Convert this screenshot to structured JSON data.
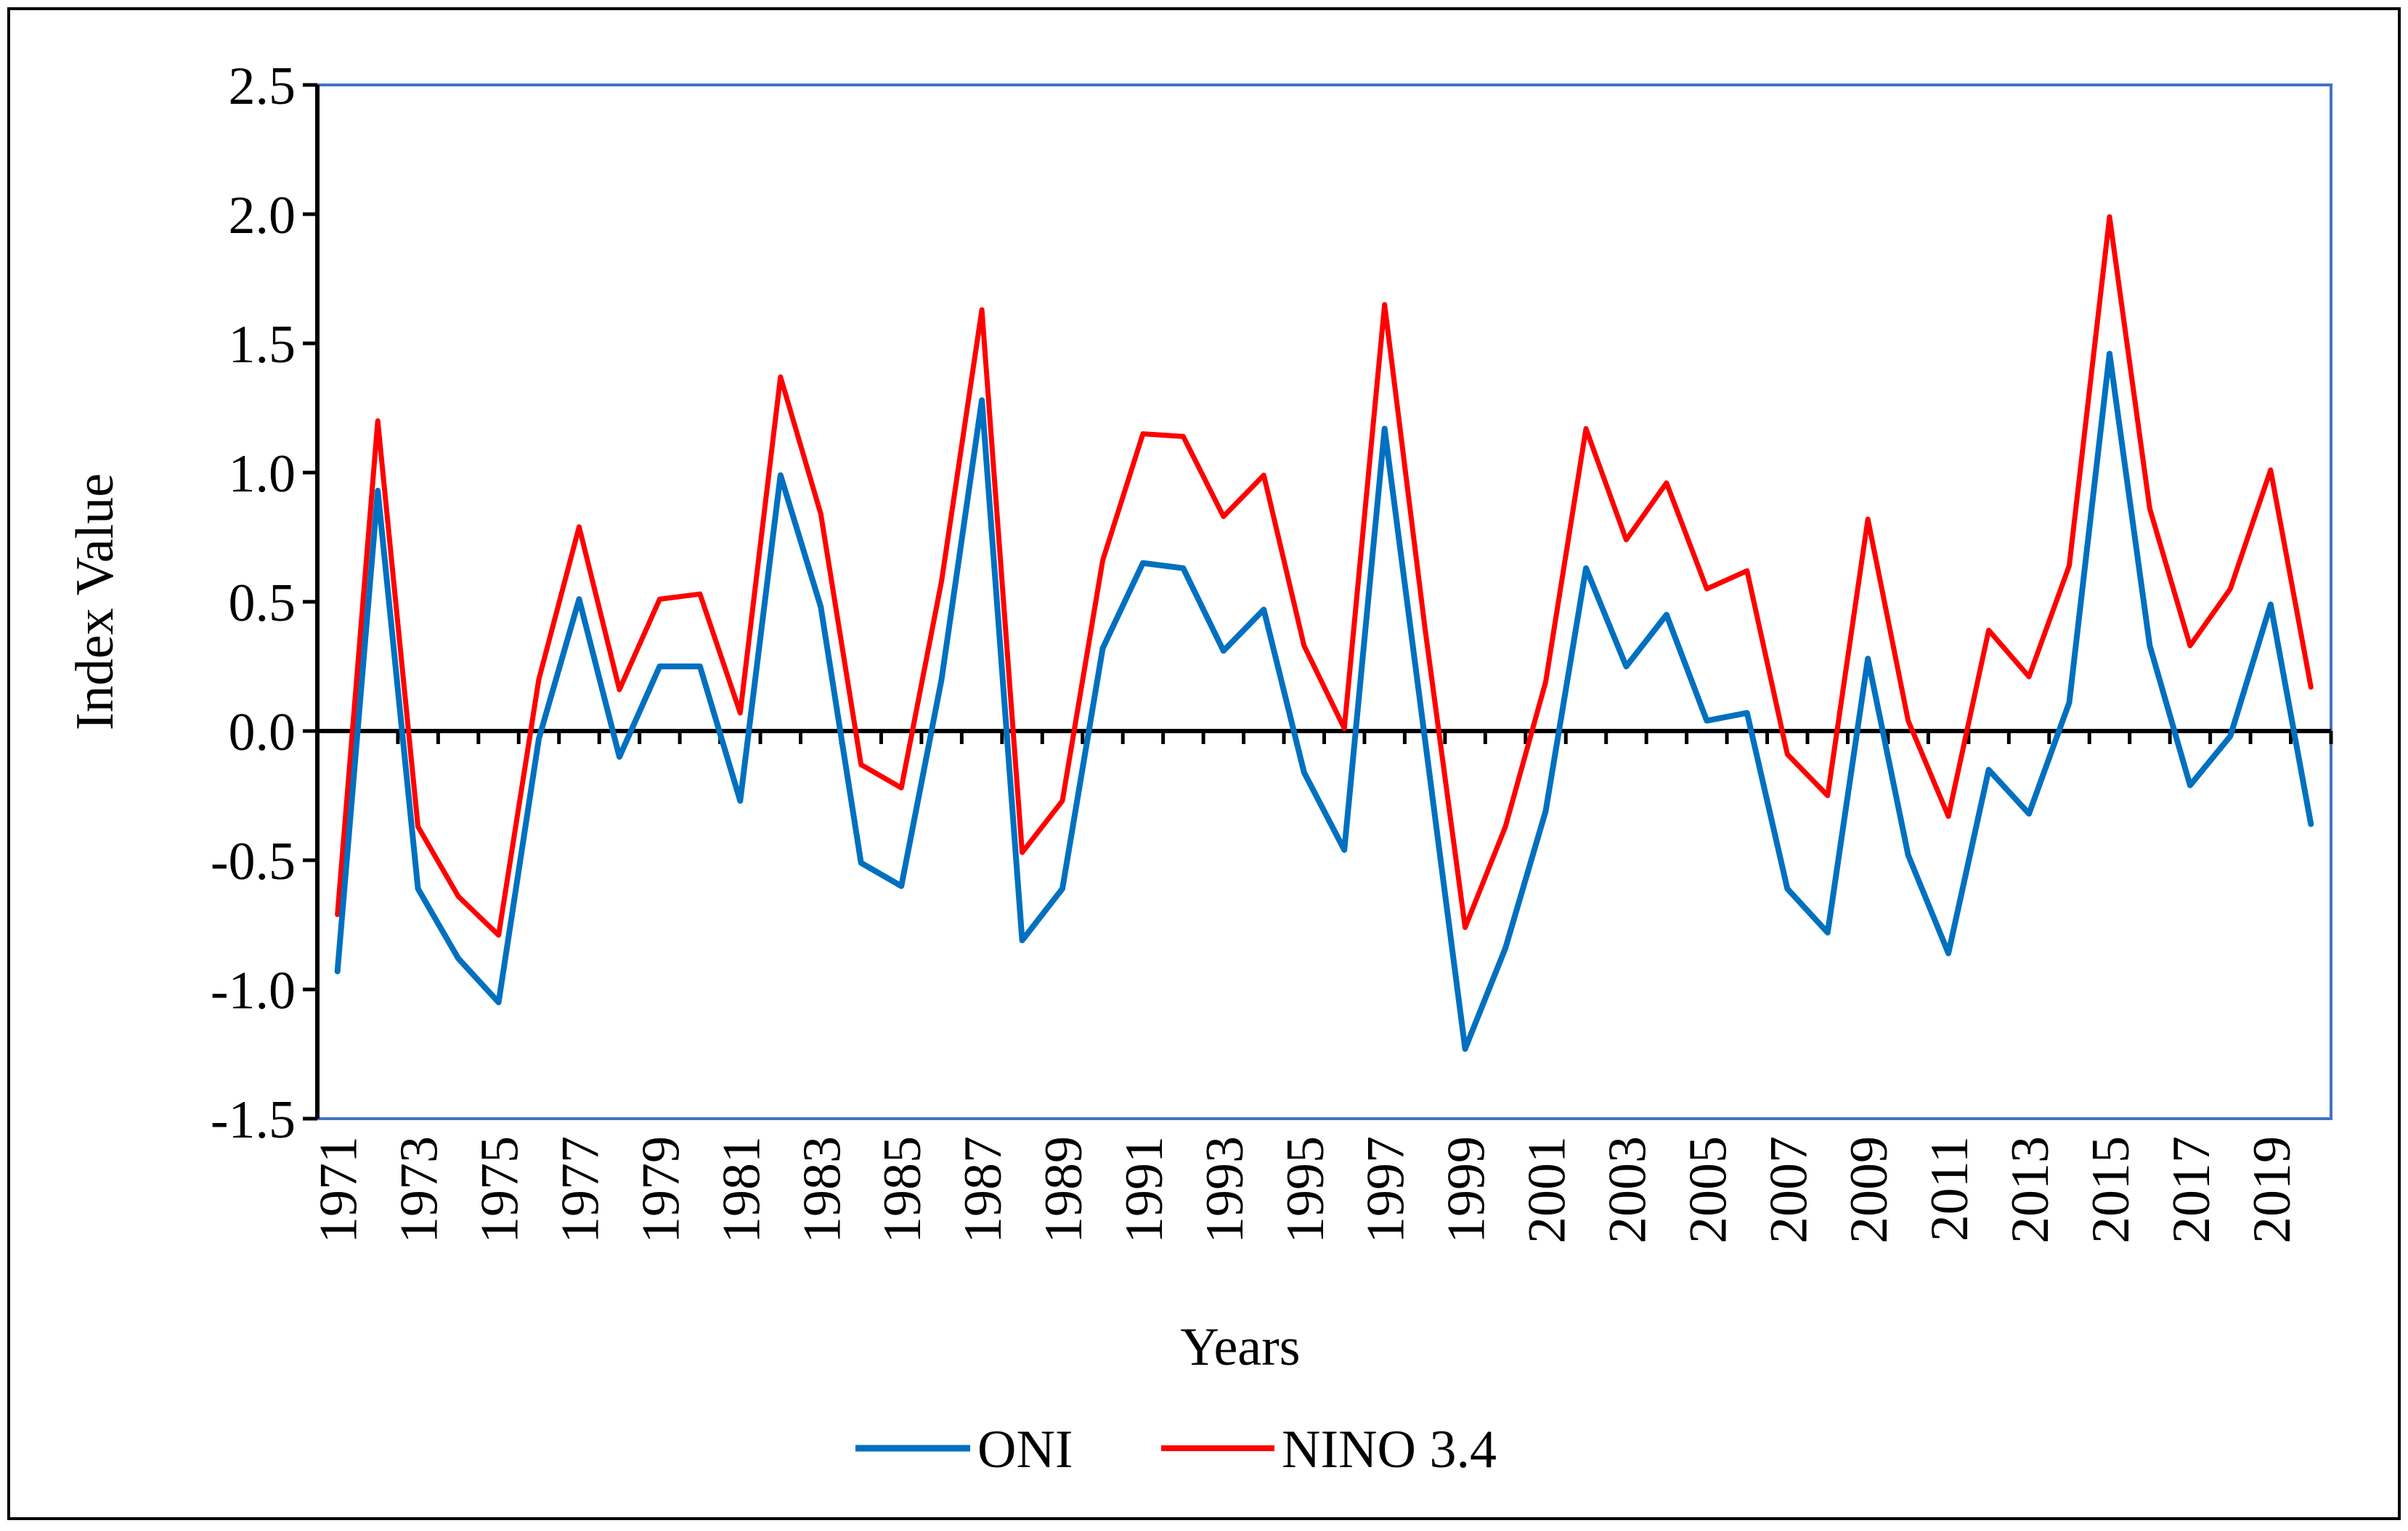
{
  "chart_data": {
    "type": "line",
    "xlabel": "Years",
    "ylabel": "Index Value",
    "ylim": [
      -1.5,
      2.5
    ],
    "yticks": [
      "2.5",
      "2.0",
      "1.5",
      "1.0",
      "0.5",
      "0.0",
      "-0.5",
      "-1.0",
      "-1.5"
    ],
    "ytick_values": [
      2.5,
      2.0,
      1.5,
      1.0,
      0.5,
      0.0,
      -0.5,
      -1.0,
      -1.5
    ],
    "x": [
      1971,
      1972,
      1973,
      1974,
      1975,
      1976,
      1977,
      1978,
      1979,
      1980,
      1981,
      1982,
      1983,
      1984,
      1985,
      1986,
      1987,
      1988,
      1989,
      1990,
      1991,
      1992,
      1993,
      1994,
      1995,
      1996,
      1997,
      1998,
      1999,
      2000,
      2001,
      2002,
      2003,
      2004,
      2005,
      2006,
      2007,
      2008,
      2009,
      2010,
      2011,
      2012,
      2013,
      2014,
      2015,
      2016,
      2017,
      2018,
      2019,
      2020
    ],
    "xtick_labels": [
      "1971",
      "1973",
      "1975",
      "1977",
      "1979",
      "1981",
      "1983",
      "1985",
      "1987",
      "1989",
      "1991",
      "1993",
      "1995",
      "1997",
      "1999",
      "2001",
      "2003",
      "2005",
      "2007",
      "2009",
      "2011",
      "2013",
      "2015",
      "2017",
      "2019"
    ],
    "grid": false,
    "legend_position": "bottom",
    "series": [
      {
        "name": "ONI",
        "color": "#0070c0",
        "values": [
          -0.93,
          0.93,
          -0.61,
          -0.88,
          -1.05,
          -0.03,
          0.51,
          -0.1,
          0.25,
          0.25,
          -0.27,
          0.99,
          0.48,
          -0.51,
          -0.6,
          0.2,
          1.28,
          -0.81,
          -0.61,
          0.32,
          0.65,
          0.63,
          0.31,
          0.47,
          -0.16,
          -0.46,
          1.17,
          -0.03,
          -1.23,
          -0.84,
          -0.31,
          0.63,
          0.25,
          0.45,
          0.04,
          0.07,
          -0.61,
          -0.78,
          0.28,
          -0.48,
          -0.86,
          -0.15,
          -0.32,
          0.11,
          1.46,
          0.33,
          -0.21,
          -0.02,
          0.49,
          -0.36
        ]
      },
      {
        "name": "NINO 3.4",
        "color": "#ff0000",
        "values": [
          -0.71,
          1.2,
          -0.37,
          -0.64,
          -0.79,
          0.2,
          0.79,
          0.16,
          0.51,
          0.53,
          0.07,
          1.37,
          0.84,
          -0.13,
          -0.22,
          0.58,
          1.63,
          -0.47,
          -0.27,
          0.66,
          1.15,
          1.14,
          0.83,
          0.99,
          0.33,
          0.01,
          1.65,
          0.4,
          -0.76,
          -0.37,
          0.19,
          1.17,
          0.74,
          0.96,
          0.55,
          0.62,
          -0.09,
          -0.25,
          0.82,
          0.04,
          -0.33,
          0.39,
          0.21,
          0.64,
          1.99,
          0.86,
          0.33,
          0.55,
          1.01,
          0.17
        ]
      }
    ]
  }
}
